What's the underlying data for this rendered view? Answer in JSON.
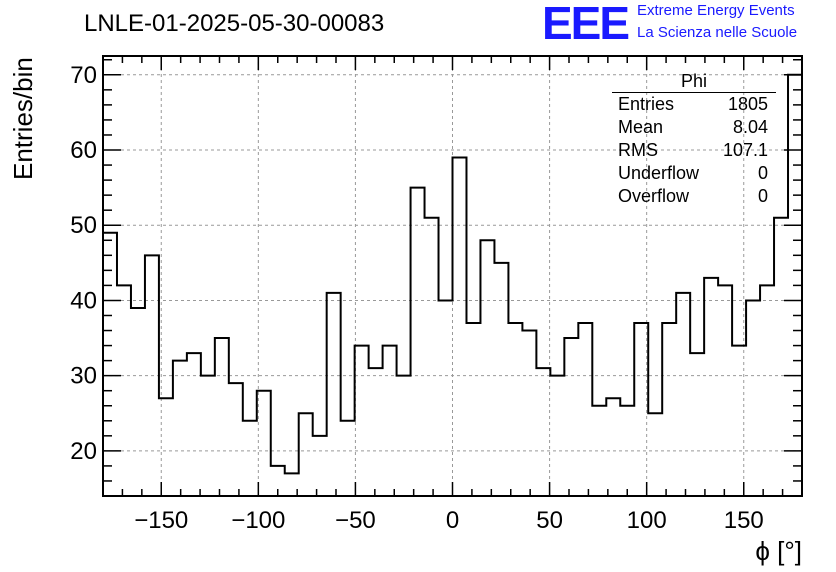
{
  "header": {
    "run_title": "LNLE-01-2025-05-30-00083",
    "logo_text": "EEE",
    "logo_line1": "Extreme Energy Events",
    "logo_line2": "La Scienza nelle Scuole"
  },
  "stats_box": {
    "title": "Phi",
    "rows": [
      {
        "label": "Entries",
        "value": "1805"
      },
      {
        "label": "Mean",
        "value": "8.04"
      },
      {
        "label": "RMS",
        "value": "107.1"
      },
      {
        "label": "Underflow",
        "value": "0"
      },
      {
        "label": "Overflow",
        "value": "0"
      }
    ]
  },
  "chart_data": {
    "type": "bar",
    "histogram": true,
    "title": "LNLE-01-2025-05-30-00083",
    "xlabel": "ϕ [°]",
    "ylabel": "Entries/bin",
    "xlim": [
      -180,
      180
    ],
    "ylim": [
      14,
      72.5
    ],
    "bin_width": 7.2,
    "x_ticks": [
      -150,
      -100,
      -50,
      0,
      50,
      100,
      150
    ],
    "x_tick_labels": [
      "−150",
      "−100",
      "−50",
      "0",
      "50",
      "100",
      "150"
    ],
    "y_ticks": [
      20,
      30,
      40,
      50,
      60,
      70
    ],
    "y_tick_labels": [
      "20",
      "30",
      "40",
      "50",
      "60",
      "70"
    ],
    "grid": true,
    "values": [
      49,
      42,
      39,
      46,
      27,
      32,
      33,
      30,
      35,
      29,
      24,
      28,
      18,
      17,
      25,
      22,
      41,
      24,
      34,
      31,
      34,
      30,
      55,
      51,
      40,
      59,
      37,
      48,
      45,
      37,
      36,
      31,
      30,
      35,
      37,
      26,
      27,
      26,
      37,
      25,
      37,
      41,
      33,
      43,
      42,
      34,
      40,
      42,
      51,
      70
    ],
    "colors": {
      "line": "#000000",
      "grid": "#999999",
      "logo": "#1a1aff"
    }
  }
}
